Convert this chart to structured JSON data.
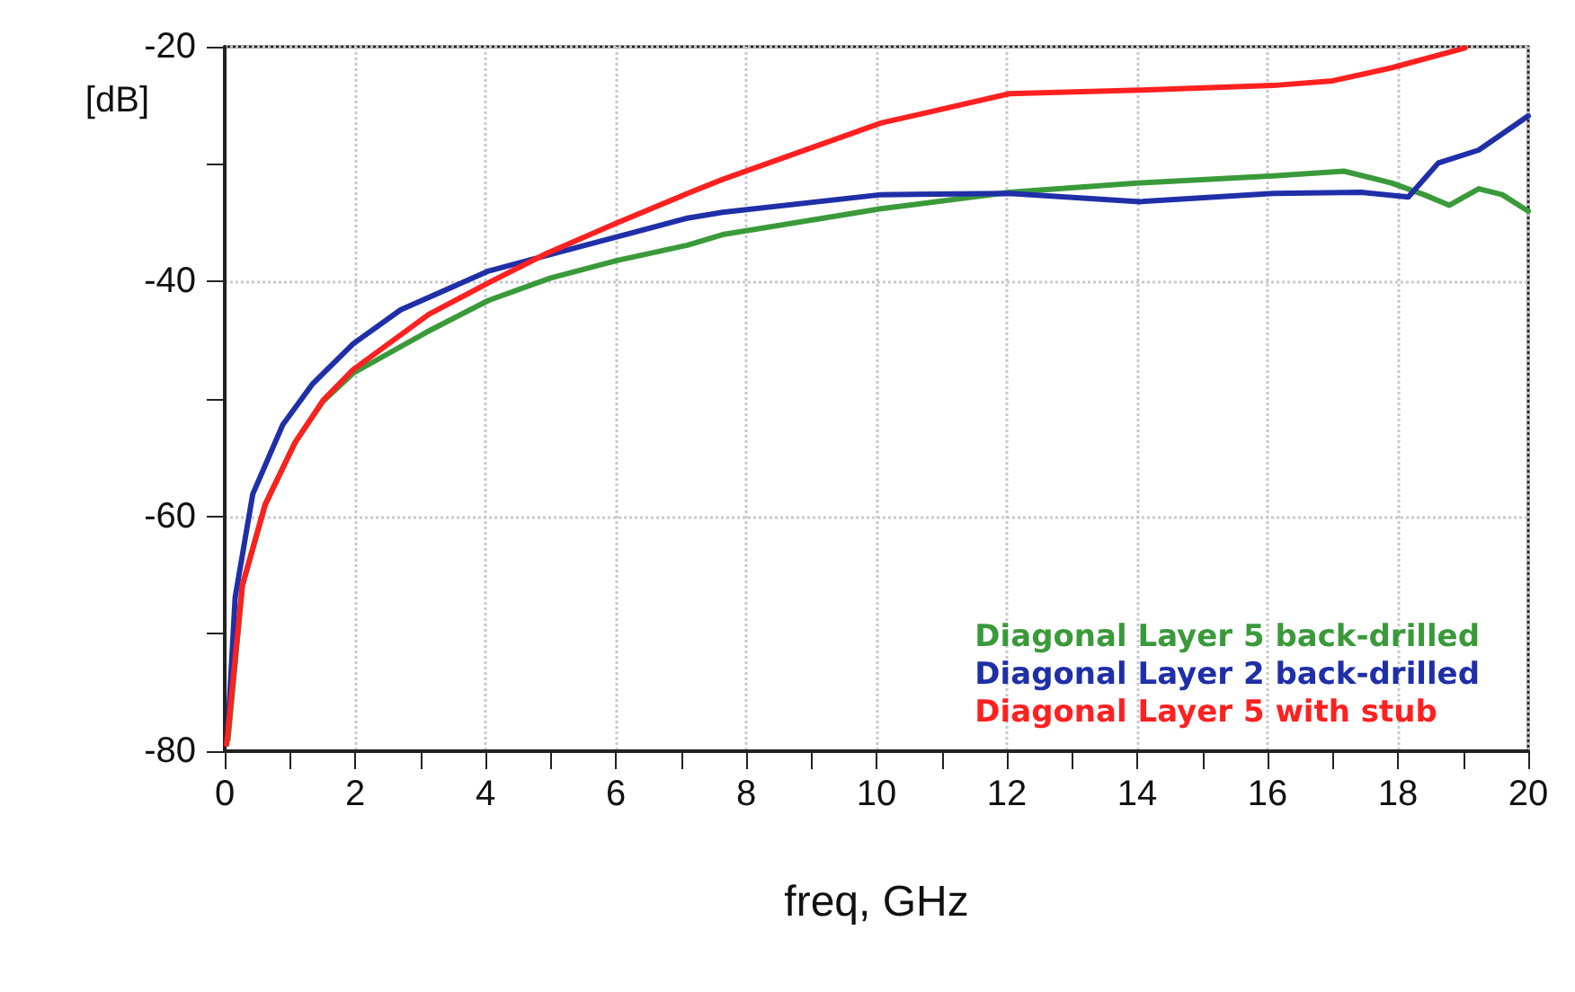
{
  "chart_data": {
    "type": "line",
    "xlabel": "freq, GHz",
    "ylabel": "[dB]",
    "xlim": [
      0,
      20
    ],
    "ylim": [
      -80,
      -20
    ],
    "xticks": [
      0,
      {
        "value": 1,
        "label": null
      },
      2,
      {
        "value": 3,
        "label": null
      },
      4,
      {
        "value": 5,
        "label": null
      },
      6,
      {
        "value": 7,
        "label": null
      },
      8,
      {
        "value": 9,
        "label": null
      },
      10,
      {
        "value": 11,
        "label": null
      },
      12,
      {
        "value": 13,
        "label": null
      },
      14,
      {
        "value": 15,
        "label": null
      },
      16,
      {
        "value": 17,
        "label": null
      },
      18,
      {
        "value": 19,
        "label": null
      },
      20
    ],
    "yticks": [
      -80,
      {
        "value": -70,
        "label": null
      },
      -60,
      {
        "value": -50,
        "label": null
      },
      -40,
      {
        "value": -30,
        "label": null
      },
      -20
    ],
    "grid": true,
    "legend": "bottom right",
    "marker": "none",
    "line_style": "solid",
    "series": [
      {
        "name": "Diagonal Layer 5 back-drilled",
        "color": "#3a9a3a",
        "x": [
          0.05,
          0.27,
          0.62,
          1.08,
          1.51,
          1.97,
          3.1,
          4.05,
          5.0,
          6.02,
          7.1,
          7.64,
          10.07,
          12.04,
          14.04,
          16.09,
          17.17,
          17.9,
          18.4,
          18.79,
          19.24,
          19.6,
          20
        ],
        "values": [
          -79,
          -65.9,
          -59,
          -53.7,
          -50.2,
          -47.8,
          -44.3,
          -41.6,
          -39.7,
          -38.2,
          -36.9,
          -36,
          -33.8,
          -32.4,
          -31.6,
          -31,
          -30.6,
          -31.6,
          -32.6,
          -33.5,
          -32.1,
          -32.6,
          -34
        ]
      },
      {
        "name": "Diagonal Layer 2 back-drilled",
        "color": "#1f2fa8",
        "x": [
          0.05,
          0.16,
          0.43,
          0.89,
          1.35,
          1.97,
          2.7,
          4.05,
          5.13,
          7.1,
          7.64,
          10.07,
          12.04,
          14.04,
          16.09,
          17.44,
          18.16,
          18.62,
          19.24,
          20
        ],
        "values": [
          -78,
          -66.9,
          -58.1,
          -52.2,
          -48.7,
          -45.3,
          -42.4,
          -39.1,
          -37.5,
          -34.6,
          -34.1,
          -32.6,
          -32.5,
          -33.2,
          -32.5,
          -32.4,
          -32.8,
          -29.9,
          -28.8,
          -25.9
        ]
      },
      {
        "name": "Diagonal Layer 5 with stub",
        "color": "#ff2020",
        "x": [
          0.03,
          0.27,
          0.62,
          1.08,
          1.51,
          1.97,
          3.13,
          4.05,
          4.94,
          6.02,
          7.1,
          7.64,
          10.07,
          12.04,
          14.04,
          16.09,
          17.0,
          17.9,
          19.03
        ],
        "values": [
          -79.4,
          -65.9,
          -59,
          -53.7,
          -50.1,
          -47.5,
          -42.8,
          -40.1,
          -37.6,
          -35,
          -32.5,
          -31.3,
          -26.5,
          -24,
          -23.7,
          -23.3,
          -22.9,
          -21.8,
          -20.1
        ]
      }
    ]
  }
}
